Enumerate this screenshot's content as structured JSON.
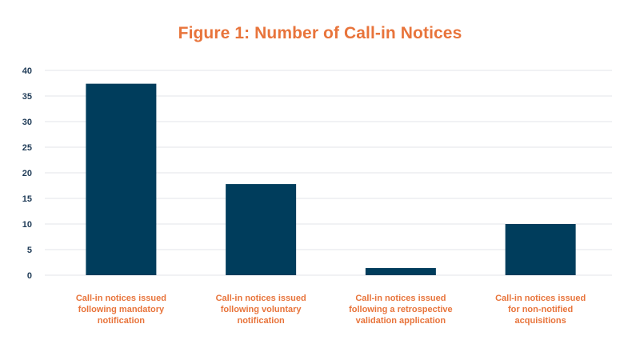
{
  "colors": {
    "title": "#E8743B",
    "bar": "#003D5C",
    "axis_text": "#1F3B57",
    "category_text": "#E8743B",
    "grid": "#E3E6EA"
  },
  "chart_data": {
    "type": "bar",
    "title": "Figure 1: Number of Call-in Notices",
    "xlabel": "",
    "ylabel": "",
    "ylim": [
      0,
      40
    ],
    "yticks": [
      0,
      5,
      10,
      15,
      20,
      25,
      30,
      35,
      40
    ],
    "grid": true,
    "legend": "none",
    "categories": [
      "Call-in notices issued following mandatory notification",
      "Call-in notices issued following voluntary notification",
      "Call-in notices issued following a retrospective validation application",
      "Call-in notices issued for non-notified acquisitions"
    ],
    "category_lines": [
      [
        "Call-in notices issued",
        "following mandatory",
        "notification"
      ],
      [
        "Call-in notices issued",
        "following voluntary",
        "notification"
      ],
      [
        "Call-in notices issued",
        "following a retrospective",
        "validation application"
      ],
      [
        "Call-in notices issued",
        "for non-notified",
        "acquisitions"
      ]
    ],
    "values": [
      37.4,
      17.8,
      1.4,
      10.0
    ]
  }
}
